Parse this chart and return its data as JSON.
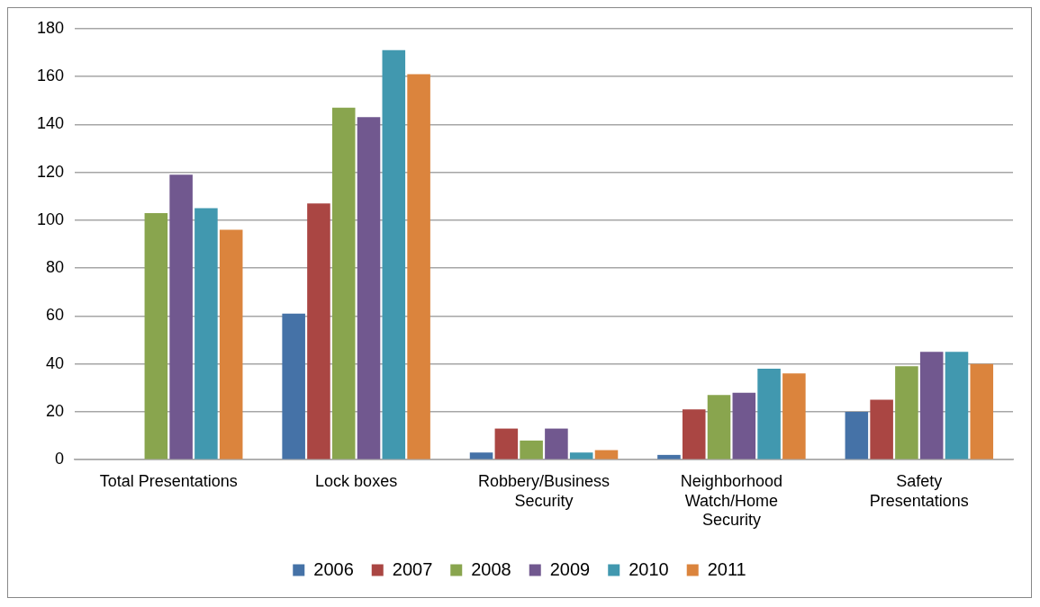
{
  "chart_data": {
    "type": "bar",
    "categories": [
      "Total Presentations",
      "Lock boxes",
      "Robbery/Business Security",
      "Neighborhood Watch/Home Security",
      "Safety Presentations"
    ],
    "series": [
      {
        "name": "2006",
        "color": "#4572a7",
        "values": [
          null,
          61,
          3,
          2,
          20
        ]
      },
      {
        "name": "2007",
        "color": "#aa4643",
        "values": [
          null,
          107,
          13,
          21,
          25
        ]
      },
      {
        "name": "2008",
        "color": "#89a54e",
        "values": [
          103,
          147,
          8,
          27,
          39
        ]
      },
      {
        "name": "2009",
        "color": "#71588f",
        "values": [
          119,
          143,
          13,
          28,
          45
        ]
      },
      {
        "name": "2010",
        "color": "#4198af",
        "values": [
          105,
          171,
          3,
          38,
          45
        ]
      },
      {
        "name": "2011",
        "color": "#db843d",
        "values": [
          96,
          161,
          4,
          36,
          40
        ]
      }
    ],
    "ylim": [
      0,
      180
    ],
    "yticks": [
      0,
      20,
      40,
      60,
      80,
      100,
      120,
      140,
      160,
      180
    ],
    "grid": "y",
    "legend": "bottom"
  }
}
